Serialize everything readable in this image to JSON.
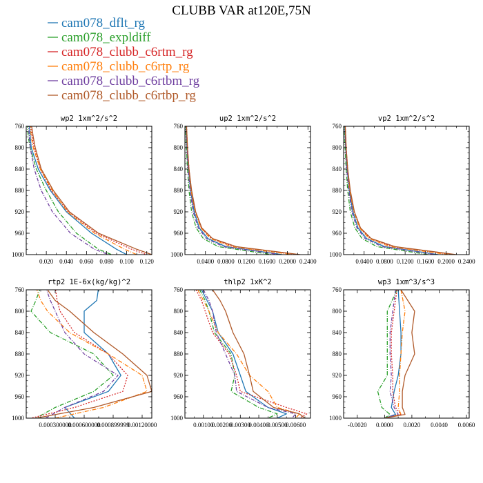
{
  "title": "CLUBB VAR at120E,75N",
  "legend": [
    {
      "label": "cam078_dflt_rg",
      "color": "#1f77b4",
      "dash": ""
    },
    {
      "label": "cam078_expldiff",
      "color": "#2ca02c",
      "dash": "6,2,1,2"
    },
    {
      "label": "cam078_clubb_c6rtm_rg",
      "color": "#d62728",
      "dash": "2,2"
    },
    {
      "label": "cam078_clubb_c6rtp_rg",
      "color": "#ff7f0e",
      "dash": "6,2,1,2"
    },
    {
      "label": "cam078_clubb_c6rtbm_rg",
      "color": "#7040a0",
      "dash": "5,2,1,2"
    },
    {
      "label": "cam078_clubb_c6rtbp_rg",
      "color": "#b05a2a",
      "dash": ""
    }
  ],
  "chart_data": [
    {
      "type": "line",
      "title": "wp2   1xm^2/s^2",
      "xlim": [
        0.0,
        0.125
      ],
      "ylim": [
        760,
        1000
      ],
      "xticks": [
        "0.020",
        "0.040",
        "0.060",
        "0.080",
        "0.100",
        "0.120"
      ],
      "xtick_values": [
        0.02,
        0.04,
        0.06,
        0.08,
        0.1,
        0.12
      ],
      "yticks": [
        "760",
        "800",
        "840",
        "880",
        "920",
        "960",
        "1000"
      ],
      "y": [
        755,
        780,
        800,
        840,
        880,
        920,
        960,
        990,
        1000
      ],
      "series": [
        {
          "name": "cam078_dflt_rg",
          "x": [
            0.003,
            0.004,
            0.005,
            0.012,
            0.024,
            0.04,
            0.065,
            0.09,
            0.1
          ]
        },
        {
          "name": "cam078_expldiff",
          "x": [
            0.001,
            0.002,
            0.004,
            0.01,
            0.02,
            0.032,
            0.05,
            0.072,
            0.085
          ]
        },
        {
          "name": "cam078_clubb_c6rtm_rg",
          "x": [
            0.004,
            0.006,
            0.008,
            0.014,
            0.025,
            0.042,
            0.07,
            0.105,
            0.12
          ]
        },
        {
          "name": "cam078_clubb_c6rtp_rg",
          "x": [
            0.004,
            0.005,
            0.007,
            0.014,
            0.026,
            0.041,
            0.068,
            0.098,
            0.11
          ]
        },
        {
          "name": "cam078_clubb_c6rtbm_rg",
          "x": [
            0.002,
            0.003,
            0.004,
            0.008,
            0.015,
            0.026,
            0.044,
            0.068,
            0.082
          ]
        },
        {
          "name": "cam078_clubb_c6rtbp_rg",
          "x": [
            0.005,
            0.007,
            0.009,
            0.015,
            0.027,
            0.043,
            0.072,
            0.11,
            0.125
          ]
        }
      ]
    },
    {
      "type": "line",
      "title": "up2   1xm^2/s^2",
      "xlim": [
        0.0,
        0.245
      ],
      "ylim": [
        760,
        1000
      ],
      "xticks": [
        "0.0400",
        "0.0800",
        "0.1200",
        "0.1600",
        "0.2000",
        "0.2400"
      ],
      "xtick_values": [
        0.04,
        0.08,
        0.12,
        0.16,
        0.2,
        0.24
      ],
      "yticks": [
        "760",
        "800",
        "840",
        "880",
        "920",
        "960",
        "1000"
      ],
      "y": [
        755,
        800,
        840,
        880,
        920,
        950,
        970,
        985,
        1000
      ],
      "series": [
        {
          "name": "cam078_dflt_rg",
          "x": [
            0.002,
            0.004,
            0.007,
            0.011,
            0.018,
            0.028,
            0.045,
            0.08,
            0.19
          ]
        },
        {
          "name": "cam078_expldiff",
          "x": [
            0.001,
            0.003,
            0.005,
            0.008,
            0.013,
            0.022,
            0.036,
            0.065,
            0.17
          ]
        },
        {
          "name": "cam078_clubb_c6rtm_rg",
          "x": [
            0.003,
            0.005,
            0.008,
            0.012,
            0.02,
            0.032,
            0.052,
            0.095,
            0.22
          ]
        },
        {
          "name": "cam078_clubb_c6rtp_rg",
          "x": [
            0.003,
            0.005,
            0.008,
            0.012,
            0.02,
            0.031,
            0.05,
            0.09,
            0.21
          ]
        },
        {
          "name": "cam078_clubb_c6rtbm_rg",
          "x": [
            0.002,
            0.004,
            0.006,
            0.01,
            0.016,
            0.026,
            0.042,
            0.075,
            0.185
          ]
        },
        {
          "name": "cam078_clubb_c6rtbp_rg",
          "x": [
            0.003,
            0.005,
            0.008,
            0.013,
            0.021,
            0.033,
            0.054,
            0.1,
            0.225
          ]
        }
      ]
    },
    {
      "type": "line",
      "title": "vp2   1xm^2/s^2",
      "xlim": [
        0.0,
        0.245
      ],
      "ylim": [
        760,
        1000
      ],
      "xticks": [
        "0.0400",
        "0.0800",
        "0.1200",
        "0.1600",
        "0.2000",
        "0.2400"
      ],
      "xtick_values": [
        0.04,
        0.08,
        0.12,
        0.16,
        0.2,
        0.24
      ],
      "yticks": [
        "760",
        "800",
        "840",
        "880",
        "920",
        "960",
        "1000"
      ],
      "y": [
        755,
        800,
        840,
        880,
        920,
        950,
        970,
        985,
        1000
      ],
      "series": [
        {
          "name": "cam078_dflt_rg",
          "x": [
            0.002,
            0.004,
            0.007,
            0.011,
            0.018,
            0.028,
            0.045,
            0.08,
            0.185
          ]
        },
        {
          "name": "cam078_expldiff",
          "x": [
            0.001,
            0.003,
            0.005,
            0.008,
            0.013,
            0.022,
            0.036,
            0.065,
            0.165
          ]
        },
        {
          "name": "cam078_clubb_c6rtm_rg",
          "x": [
            0.003,
            0.005,
            0.008,
            0.012,
            0.02,
            0.032,
            0.052,
            0.095,
            0.215
          ]
        },
        {
          "name": "cam078_clubb_c6rtp_rg",
          "x": [
            0.003,
            0.005,
            0.008,
            0.012,
            0.02,
            0.031,
            0.05,
            0.09,
            0.205
          ]
        },
        {
          "name": "cam078_clubb_c6rtbm_rg",
          "x": [
            0.002,
            0.004,
            0.006,
            0.01,
            0.016,
            0.026,
            0.042,
            0.075,
            0.18
          ]
        },
        {
          "name": "cam078_clubb_c6rtbp_rg",
          "x": [
            0.003,
            0.005,
            0.008,
            0.013,
            0.021,
            0.033,
            0.054,
            0.1,
            0.22
          ]
        }
      ]
    },
    {
      "type": "line",
      "title": "rtp2   1E-6x(kg/kg)^2",
      "xlim": [
        0.0,
        0.0013
      ],
      "ylim": [
        760,
        1000
      ],
      "xticks": [
        "0.000300000",
        "0.000600000",
        "0.000899999",
        "0.00120000"
      ],
      "xtick_values": [
        0.0003,
        0.0006,
        0.0009,
        0.0012
      ],
      "yticks": [
        "760",
        "800",
        "840",
        "880",
        "920",
        "960",
        "1000"
      ],
      "y": [
        755,
        780,
        800,
        840,
        880,
        920,
        950,
        980,
        1000
      ],
      "series": [
        {
          "name": "cam078_dflt_rg",
          "x": [
            0.00075,
            0.00073,
            0.0006,
            0.0006,
            0.00085,
            0.00098,
            0.00085,
            0.0004,
            0.0005
          ]
        },
        {
          "name": "cam078_expldiff",
          "x": [
            0.00015,
            0.0001,
            5e-05,
            0.00025,
            0.0007,
            0.0009,
            0.0007,
            0.0003,
            0.0001
          ]
        },
        {
          "name": "cam078_clubb_c6rtm_rg",
          "x": [
            0.0003,
            0.00032,
            0.00035,
            0.0005,
            0.00085,
            0.00105,
            0.001,
            0.0005,
            5e-05
          ]
        },
        {
          "name": "cam078_clubb_c6rtp_rg",
          "x": [
            0.0001,
            0.00015,
            0.00022,
            0.00045,
            0.00085,
            0.0012,
            0.00125,
            0.0008,
            0.0003
          ]
        },
        {
          "name": "cam078_clubb_c6rtbm_rg",
          "x": [
            0.0002,
            0.00025,
            0.0003,
            0.0004,
            0.0006,
            0.00095,
            0.0008,
            0.0004,
            0.0002
          ]
        },
        {
          "name": "cam078_clubb_c6rtbp_rg",
          "x": [
            0.0002,
            0.0003,
            0.00045,
            0.0007,
            0.001,
            0.00125,
            0.0013,
            0.0007,
            0.0001
          ]
        }
      ]
    },
    {
      "type": "line",
      "title": "thlp2   1xK^2",
      "xlim": [
        0.0,
        0.0068
      ],
      "ylim": [
        760,
        1000
      ],
      "xticks": [
        "0.00100",
        "0.00200",
        "0.00300",
        "0.00400",
        "0.00500",
        "0.00600"
      ],
      "xtick_values": [
        0.001,
        0.002,
        0.003,
        0.004,
        0.005,
        0.006
      ],
      "yticks": [
        "760",
        "800",
        "840",
        "880",
        "920",
        "960",
        "1000"
      ],
      "y": [
        760,
        780,
        800,
        840,
        880,
        920,
        950,
        980,
        992,
        1000
      ],
      "series": [
        {
          "name": "cam078_dflt_rg",
          "x": [
            0.0009,
            0.0012,
            0.0015,
            0.0018,
            0.0026,
            0.003,
            0.0033,
            0.0045,
            0.0055,
            0.005
          ]
        },
        {
          "name": "cam078_expldiff",
          "x": [
            0.0008,
            0.0011,
            0.0013,
            0.0016,
            0.0025,
            0.0027,
            0.0025,
            0.004,
            0.005,
            0.0045
          ]
        },
        {
          "name": "cam078_clubb_c6rtm_rg",
          "x": [
            0.0006,
            0.0009,
            0.0011,
            0.0015,
            0.0024,
            0.0028,
            0.003,
            0.0055,
            0.0066,
            0.0062
          ]
        },
        {
          "name": "cam078_clubb_c6rtp_rg",
          "x": [
            0.0007,
            0.001,
            0.0013,
            0.0018,
            0.0028,
            0.0035,
            0.0045,
            0.005,
            0.0062,
            0.006
          ]
        },
        {
          "name": "cam078_clubb_c6rtbm_rg",
          "x": [
            0.001,
            0.0013,
            0.0015,
            0.0017,
            0.0022,
            0.0027,
            0.0028,
            0.0045,
            0.006,
            0.0058
          ]
        },
        {
          "name": "cam078_clubb_c6rtbp_rg",
          "x": [
            0.0015,
            0.0019,
            0.0022,
            0.0026,
            0.0032,
            0.0035,
            0.0037,
            0.0048,
            0.0062,
            0.0065
          ]
        }
      ]
    },
    {
      "type": "line",
      "title": "wp3   1xm^3/s^3",
      "xlim": [
        -0.003,
        0.0062
      ],
      "ylim": [
        760,
        1000
      ],
      "xticks": [
        "-0.0020",
        "0.0000",
        "0.0020",
        "0.0040",
        "0.0060"
      ],
      "xtick_values": [
        -0.002,
        0.0,
        0.002,
        0.004,
        0.006
      ],
      "yticks": [
        "760",
        "800",
        "840",
        "880",
        "920",
        "960",
        "1000"
      ],
      "y": [
        760,
        800,
        840,
        880,
        920,
        950,
        980,
        993,
        1000
      ],
      "series": [
        {
          "name": "cam078_dflt_rg",
          "x": [
            0.001,
            0.0011,
            0.0012,
            0.0012,
            0.001,
            0.0007,
            0.0005,
            0.0008,
            0.0
          ]
        },
        {
          "name": "cam078_expldiff",
          "x": [
            0.0009,
            0.0002,
            0.0002,
            0.0002,
            0.0002,
            -0.0005,
            -0.0002,
            0.0004,
            0.0
          ]
        },
        {
          "name": "cam078_clubb_c6rtm_rg",
          "x": [
            0.0009,
            0.0007,
            0.0005,
            0.0005,
            0.0006,
            0.0006,
            0.0008,
            0.0012,
            0.0
          ]
        },
        {
          "name": "cam078_clubb_c6rtp_rg",
          "x": [
            0.0012,
            0.0015,
            0.0013,
            0.0012,
            0.0011,
            0.0011,
            0.001,
            0.0012,
            0.0
          ]
        },
        {
          "name": "cam078_clubb_c6rtbm_rg",
          "x": [
            0.0008,
            0.0006,
            0.0004,
            0.0004,
            0.0005,
            0.0004,
            0.0007,
            0.001,
            0.0
          ]
        },
        {
          "name": "cam078_clubb_c6rtbp_rg",
          "x": [
            0.0012,
            0.0022,
            0.002,
            0.0022,
            0.0015,
            0.0013,
            0.0013,
            0.0015,
            0.0
          ]
        }
      ]
    }
  ]
}
